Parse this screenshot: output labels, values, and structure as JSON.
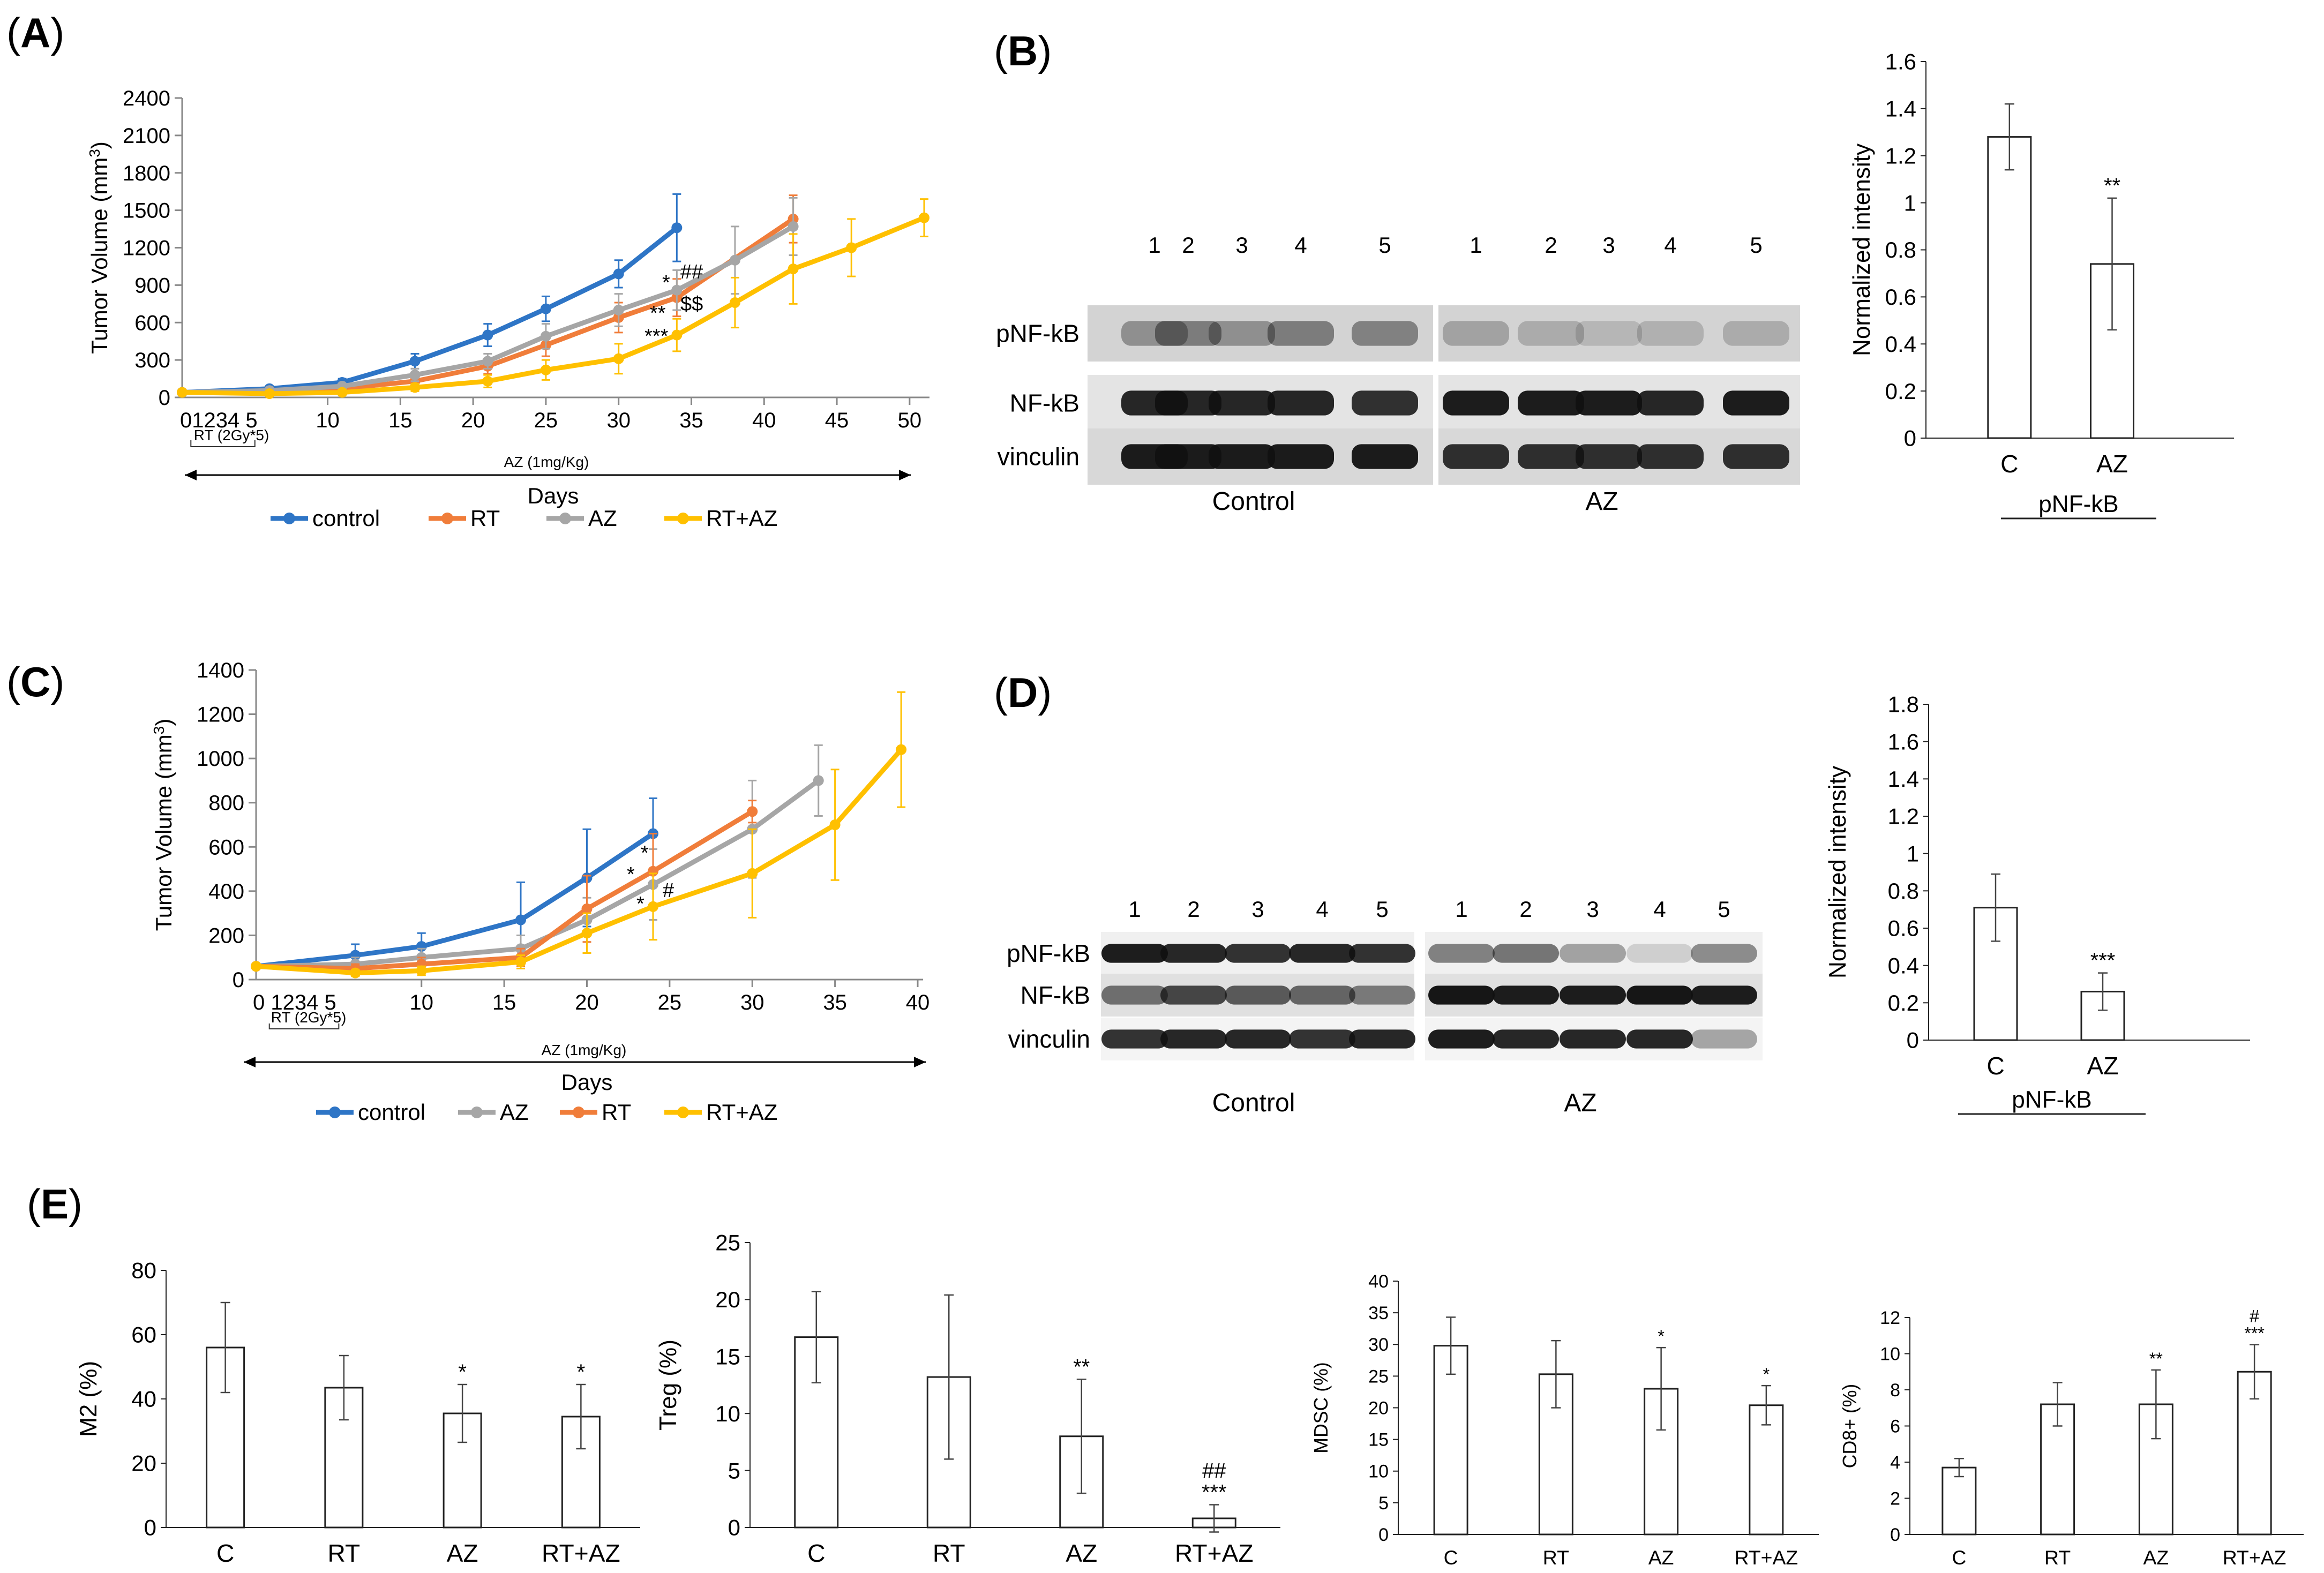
{
  "panels": {
    "A": {
      "open": "(",
      "letter": "A",
      "close": ")"
    },
    "B": {
      "open": "(",
      "letter": "B",
      "close": ")"
    },
    "C": {
      "open": "(",
      "letter": "C",
      "close": ")"
    },
    "D": {
      "open": "(",
      "letter": "D",
      "close": ")"
    },
    "E": {
      "open": "(",
      "letter": "E",
      "close": ")"
    }
  },
  "colors": {
    "control": "#2E75C6",
    "RT": "#F07D3A",
    "AZ": "#A6A6A6",
    "RT+AZ": "#FFC000"
  },
  "annotations": {
    "A": {
      "rt_label": "RT (2Gy*5)",
      "az_label": "AZ (1mg/Kg)",
      "day_ticks": "01234 5",
      "sig": [
        "*",
        "##",
        "**",
        "$$",
        "***"
      ]
    },
    "C": {
      "rt_label": "RT (2Gy*5)",
      "az_label": "AZ (1mg/Kg)",
      "day_ticks": "0 1234 5",
      "sig": [
        "*",
        "*",
        "*",
        "#"
      ]
    }
  },
  "blots": {
    "B": {
      "lanes": [
        "1",
        "2",
        "3",
        "4",
        "5"
      ],
      "rows": [
        "pNF-kB",
        "NF-kB",
        "vinculin"
      ],
      "groups": [
        "Control",
        "AZ"
      ]
    },
    "D": {
      "lanes": [
        "1",
        "2",
        "3",
        "4",
        "5"
      ],
      "rows": [
        "pNF-kB",
        "NF-kB",
        "vinculin"
      ],
      "groups": [
        "Control",
        "AZ"
      ]
    }
  },
  "chart_data": [
    {
      "id": "A",
      "type": "line",
      "xlabel": "Days",
      "ylabel": "Tumor Volume (mm3)",
      "xlim": [
        0,
        51
      ],
      "ylim": [
        0,
        2400
      ],
      "xticks": [
        10,
        15,
        20,
        25,
        30,
        35,
        40,
        45,
        50
      ],
      "yticks": [
        0,
        300,
        600,
        900,
        1200,
        1500,
        1800,
        2100,
        2400
      ],
      "legend": "bottom",
      "series": [
        {
          "name": "control",
          "x": [
            0,
            6,
            11,
            16,
            21,
            25,
            30,
            34
          ],
          "y": [
            40,
            70,
            120,
            290,
            500,
            710,
            990,
            1360
          ],
          "err": [
            10,
            20,
            30,
            60,
            90,
            100,
            110,
            270
          ]
        },
        {
          "name": "RT",
          "x": [
            0,
            6,
            11,
            16,
            21,
            25,
            30,
            34,
            42
          ],
          "y": [
            40,
            45,
            70,
            130,
            250,
            420,
            640,
            800,
            1430
          ],
          "err": [
            10,
            15,
            20,
            40,
            60,
            90,
            120,
            150,
            190
          ]
        },
        {
          "name": "AZ",
          "x": [
            0,
            6,
            11,
            16,
            21,
            25,
            30,
            34,
            38,
            42
          ],
          "y": [
            40,
            55,
            90,
            180,
            290,
            490,
            700,
            860,
            1100,
            1370
          ],
          "err": [
            10,
            15,
            20,
            50,
            60,
            100,
            130,
            160,
            270,
            230
          ]
        },
        {
          "name": "RT+AZ",
          "x": [
            0,
            6,
            11,
            16,
            21,
            25,
            30,
            34,
            38,
            42,
            46,
            51
          ],
          "y": [
            40,
            30,
            40,
            80,
            130,
            220,
            310,
            500,
            760,
            1030,
            1200,
            1440
          ],
          "err": [
            10,
            10,
            15,
            30,
            50,
            80,
            120,
            130,
            200,
            280,
            230,
            150
          ]
        }
      ]
    },
    {
      "id": "B",
      "type": "bar",
      "categories": [
        "C",
        "AZ"
      ],
      "values": [
        1.28,
        0.74
      ],
      "err": [
        0.14,
        0.28
      ],
      "sig": [
        "",
        "**"
      ],
      "ylabel": "Normalized intensity",
      "xlabel": "pNF-kB",
      "ylim": [
        0,
        1.6
      ],
      "yticks": [
        0,
        0.2,
        0.4,
        0.6,
        0.8,
        1,
        1.2,
        1.4,
        1.6
      ]
    },
    {
      "id": "C",
      "type": "line",
      "xlabel": "Days",
      "ylabel": "Tumor Volume (mm3)",
      "xlim": [
        0,
        40
      ],
      "ylim": [
        0,
        1400
      ],
      "xticks": [
        10,
        15,
        20,
        25,
        30,
        35,
        40
      ],
      "yticks": [
        0,
        200,
        400,
        600,
        800,
        1000,
        1200,
        1400
      ],
      "legend": "bottom",
      "series": [
        {
          "name": "control",
          "x": [
            0,
            6,
            10,
            16,
            20,
            24
          ],
          "y": [
            60,
            110,
            150,
            270,
            460,
            660
          ],
          "err": [
            10,
            50,
            60,
            170,
            220,
            160
          ]
        },
        {
          "name": "AZ",
          "x": [
            0,
            6,
            10,
            16,
            20,
            24,
            30,
            34
          ],
          "y": [
            60,
            70,
            100,
            140,
            270,
            430,
            680,
            900
          ],
          "err": [
            10,
            30,
            40,
            60,
            100,
            160,
            220,
            160
          ]
        },
        {
          "name": "RT",
          "x": [
            0,
            6,
            10,
            16,
            20,
            24,
            30
          ],
          "y": [
            60,
            50,
            70,
            100,
            320,
            490,
            760
          ],
          "err": [
            10,
            20,
            30,
            40,
            150,
            170,
            50
          ]
        },
        {
          "name": "RT+AZ",
          "x": [
            0,
            6,
            10,
            16,
            20,
            24,
            30,
            35,
            39
          ],
          "y": [
            60,
            30,
            40,
            80,
            210,
            330,
            480,
            700,
            1040
          ],
          "err": [
            10,
            15,
            20,
            30,
            90,
            150,
            200,
            250,
            260
          ]
        }
      ]
    },
    {
      "id": "D",
      "type": "bar",
      "categories": [
        "C",
        "AZ"
      ],
      "values": [
        0.71,
        0.26
      ],
      "err": [
        0.18,
        0.1
      ],
      "sig": [
        "",
        "***"
      ],
      "ylabel": "Normalized intensity",
      "xlabel": "pNF-kB",
      "ylim": [
        0,
        1.8
      ],
      "yticks": [
        0,
        0.2,
        0.4,
        0.6,
        0.8,
        1,
        1.2,
        1.4,
        1.6,
        1.8
      ]
    },
    {
      "id": "E1",
      "type": "bar",
      "categories": [
        "C",
        "RT",
        "AZ",
        "RT+AZ"
      ],
      "values": [
        56,
        43.5,
        35.5,
        34.5
      ],
      "err": [
        14,
        10,
        9,
        10
      ],
      "sig": [
        "",
        "",
        "*",
        "*"
      ],
      "ylabel": "M2 (%)",
      "ylim": [
        0,
        80
      ],
      "yticks": [
        0,
        20,
        40,
        60,
        80
      ]
    },
    {
      "id": "E2",
      "type": "bar",
      "categories": [
        "C",
        "RT",
        "AZ",
        "RT+AZ"
      ],
      "values": [
        16.7,
        13.2,
        8,
        0.8
      ],
      "err": [
        4,
        7.2,
        5,
        1.2
      ],
      "sig": [
        "",
        "",
        "**",
        "##\n***"
      ],
      "ylabel": "Treg (%)",
      "ylim": [
        0,
        25
      ],
      "yticks": [
        0,
        5,
        10,
        15,
        20,
        25
      ]
    },
    {
      "id": "E3",
      "type": "bar",
      "categories": [
        "C",
        "RT",
        "AZ",
        "RT+AZ"
      ],
      "values": [
        29.8,
        25.3,
        23,
        20.4
      ],
      "err": [
        4.5,
        5.3,
        6.5,
        3.1
      ],
      "sig": [
        "",
        "",
        "*",
        "*"
      ],
      "ylabel": "MDSC (%)",
      "ylim": [
        0,
        40
      ],
      "yticks": [
        0,
        5,
        10,
        15,
        20,
        25,
        30,
        35,
        40
      ]
    },
    {
      "id": "E4",
      "type": "bar",
      "categories": [
        "C",
        "RT",
        "AZ",
        "RT+AZ"
      ],
      "values": [
        3.7,
        7.2,
        7.2,
        9
      ],
      "err": [
        0.5,
        1.2,
        1.9,
        1.5
      ],
      "sig": [
        "",
        "",
        "**",
        "#\n***"
      ],
      "ylabel": "CD8+ (%)",
      "ylim": [
        0,
        12
      ],
      "yticks": [
        0,
        2,
        4,
        6,
        8,
        10,
        12
      ]
    }
  ]
}
